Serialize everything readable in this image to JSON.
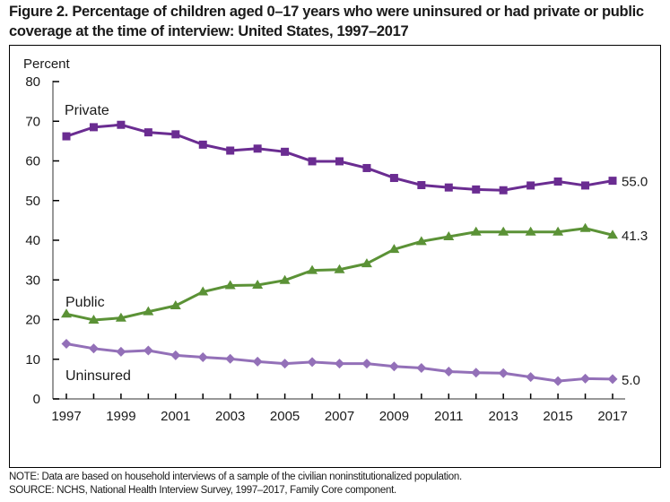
{
  "title": "Figure 2. Percentage of children aged 0–17 years who were uninsured or had private or public coverage at the time of interview: United States, 1997–2017",
  "note": "NOTE: Data are based on household interviews of a sample of the civilian noninstitutionalized population.",
  "source": "SOURCE: NCHS, National Health Interview Survey, 1997–2017, Family Core component.",
  "chart_data": {
    "type": "line",
    "title": "Figure 2. Percentage of children aged 0–17 years who were uninsured or had private or public coverage at the time of interview: United States, 1997–2017",
    "xlabel": "",
    "ylabel": "Percent",
    "ylim": [
      0,
      80
    ],
    "yticks": [
      0,
      10,
      20,
      30,
      40,
      50,
      60,
      70,
      80
    ],
    "xlim": [
      1997,
      2017
    ],
    "xtick_labels": [
      "1997",
      "1999",
      "2001",
      "2003",
      "2005",
      "2007",
      "2009",
      "2011",
      "2013",
      "2015",
      "2017"
    ],
    "x": [
      1997,
      1998,
      1999,
      2000,
      2001,
      2002,
      2003,
      2004,
      2005,
      2006,
      2007,
      2008,
      2009,
      2010,
      2011,
      2012,
      2013,
      2014,
      2015,
      2016,
      2017
    ],
    "grid": false,
    "legend": "inline labels",
    "series": [
      {
        "name": "Private",
        "color": "#6a2c91",
        "marker": "square",
        "values": [
          66.2,
          68.5,
          69.1,
          67.2,
          66.7,
          64.1,
          62.6,
          63.1,
          62.3,
          59.9,
          59.9,
          58.2,
          55.7,
          53.9,
          53.3,
          52.8,
          52.6,
          53.8,
          54.8,
          53.8,
          55.0
        ],
        "end_label": "55.0"
      },
      {
        "name": "Public",
        "color": "#5b9236",
        "marker": "triangle",
        "values": [
          21.4,
          19.9,
          20.4,
          22.0,
          23.5,
          27.0,
          28.6,
          28.7,
          29.9,
          32.4,
          32.6,
          34.1,
          37.7,
          39.7,
          40.9,
          42.1,
          42.1,
          42.1,
          42.1,
          43.0,
          41.3
        ],
        "end_label": "41.3"
      },
      {
        "name": "Uninsured",
        "color": "#9370b8",
        "marker": "diamond",
        "values": [
          13.9,
          12.7,
          11.9,
          12.2,
          11.0,
          10.5,
          10.1,
          9.4,
          8.9,
          9.3,
          8.9,
          8.9,
          8.2,
          7.8,
          6.9,
          6.6,
          6.5,
          5.5,
          4.5,
          5.1,
          5.0
        ],
        "end_label": "5.0"
      }
    ]
  }
}
